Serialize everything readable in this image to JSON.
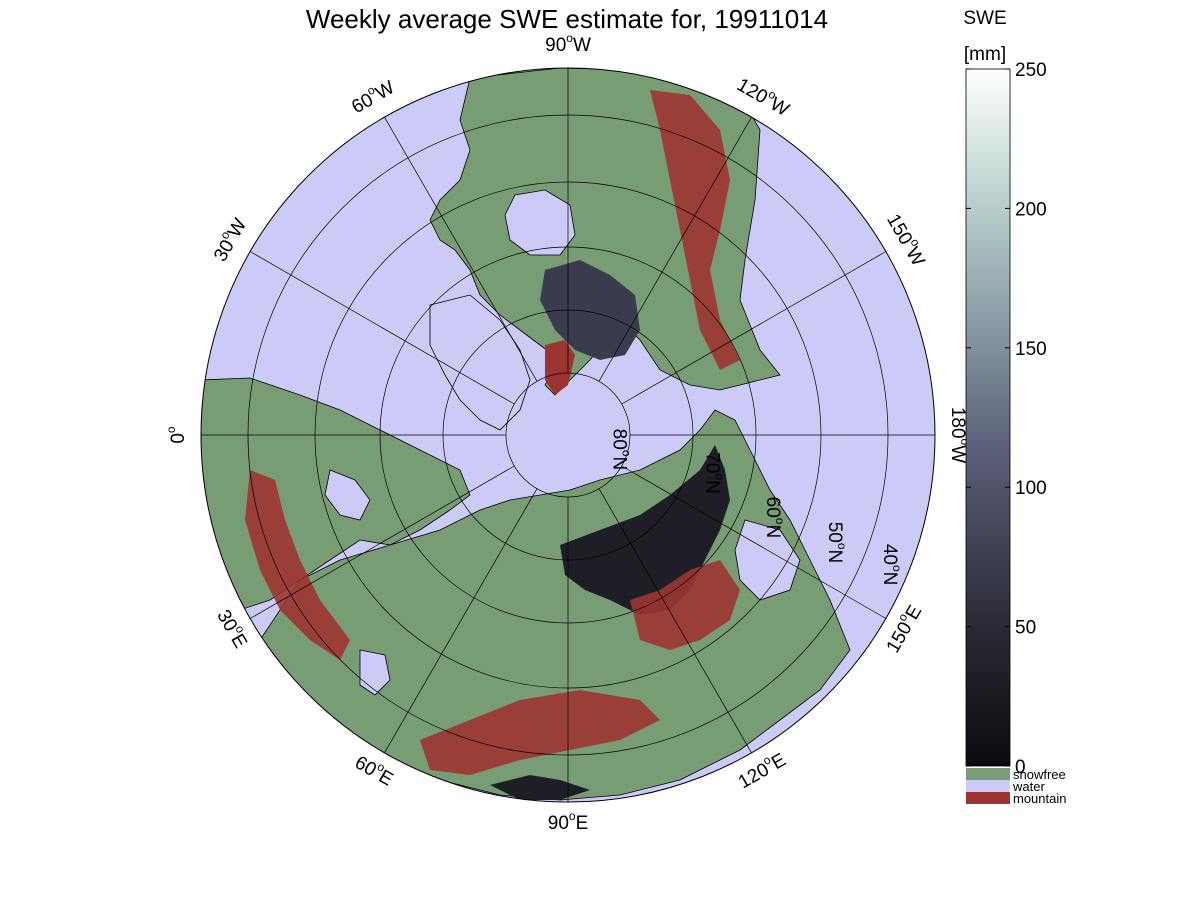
{
  "title": "Weekly average SWE estimate for, 19911014",
  "colorbar": {
    "label_line1": "SWE",
    "label_line2": "[mm]",
    "ticks": [
      0,
      50,
      100,
      150,
      200,
      250
    ],
    "range": [
      0,
      250
    ],
    "categories": [
      {
        "name": "snowfree",
        "color": "#789c74"
      },
      {
        "name": "water",
        "color": "#cccbf8"
      },
      {
        "name": "mountain",
        "color": "#9c3532"
      }
    ]
  },
  "map": {
    "projection": "north polar stereographic",
    "colors": {
      "water": "#cccbf8",
      "snowfree": "#789c74",
      "mountain": "#9c3532",
      "snow_low": "#1c1c24",
      "snow_high": "#ffffff",
      "grid": "#000000",
      "coast": "#000000"
    },
    "meridian_labels": [
      {
        "id": "lon-90w",
        "text": "90",
        "hemi": "W"
      },
      {
        "id": "lon-120w",
        "text": "120",
        "hemi": "W"
      },
      {
        "id": "lon-150w",
        "text": "150",
        "hemi": "W"
      },
      {
        "id": "lon-180w",
        "text": "180",
        "hemi": "W"
      },
      {
        "id": "lon-150e",
        "text": "150",
        "hemi": "E"
      },
      {
        "id": "lon-120e",
        "text": "120",
        "hemi": "E"
      },
      {
        "id": "lon-90e",
        "text": "90",
        "hemi": "E"
      },
      {
        "id": "lon-60e",
        "text": "60",
        "hemi": "E"
      },
      {
        "id": "lon-30e",
        "text": "30",
        "hemi": "E"
      },
      {
        "id": "lon-0",
        "text": "0",
        "hemi": ""
      },
      {
        "id": "lon-30w",
        "text": "30",
        "hemi": "W"
      },
      {
        "id": "lon-60w",
        "text": "60",
        "hemi": "W"
      }
    ],
    "parallel_labels": [
      {
        "id": "lat-80n",
        "text": "80",
        "hemi": "N"
      },
      {
        "id": "lat-70n",
        "text": "70",
        "hemi": "N"
      },
      {
        "id": "lat-60n",
        "text": "60",
        "hemi": "N"
      },
      {
        "id": "lat-50n",
        "text": "50",
        "hemi": "N"
      },
      {
        "id": "lat-40n",
        "text": "40",
        "hemi": "N"
      }
    ]
  }
}
